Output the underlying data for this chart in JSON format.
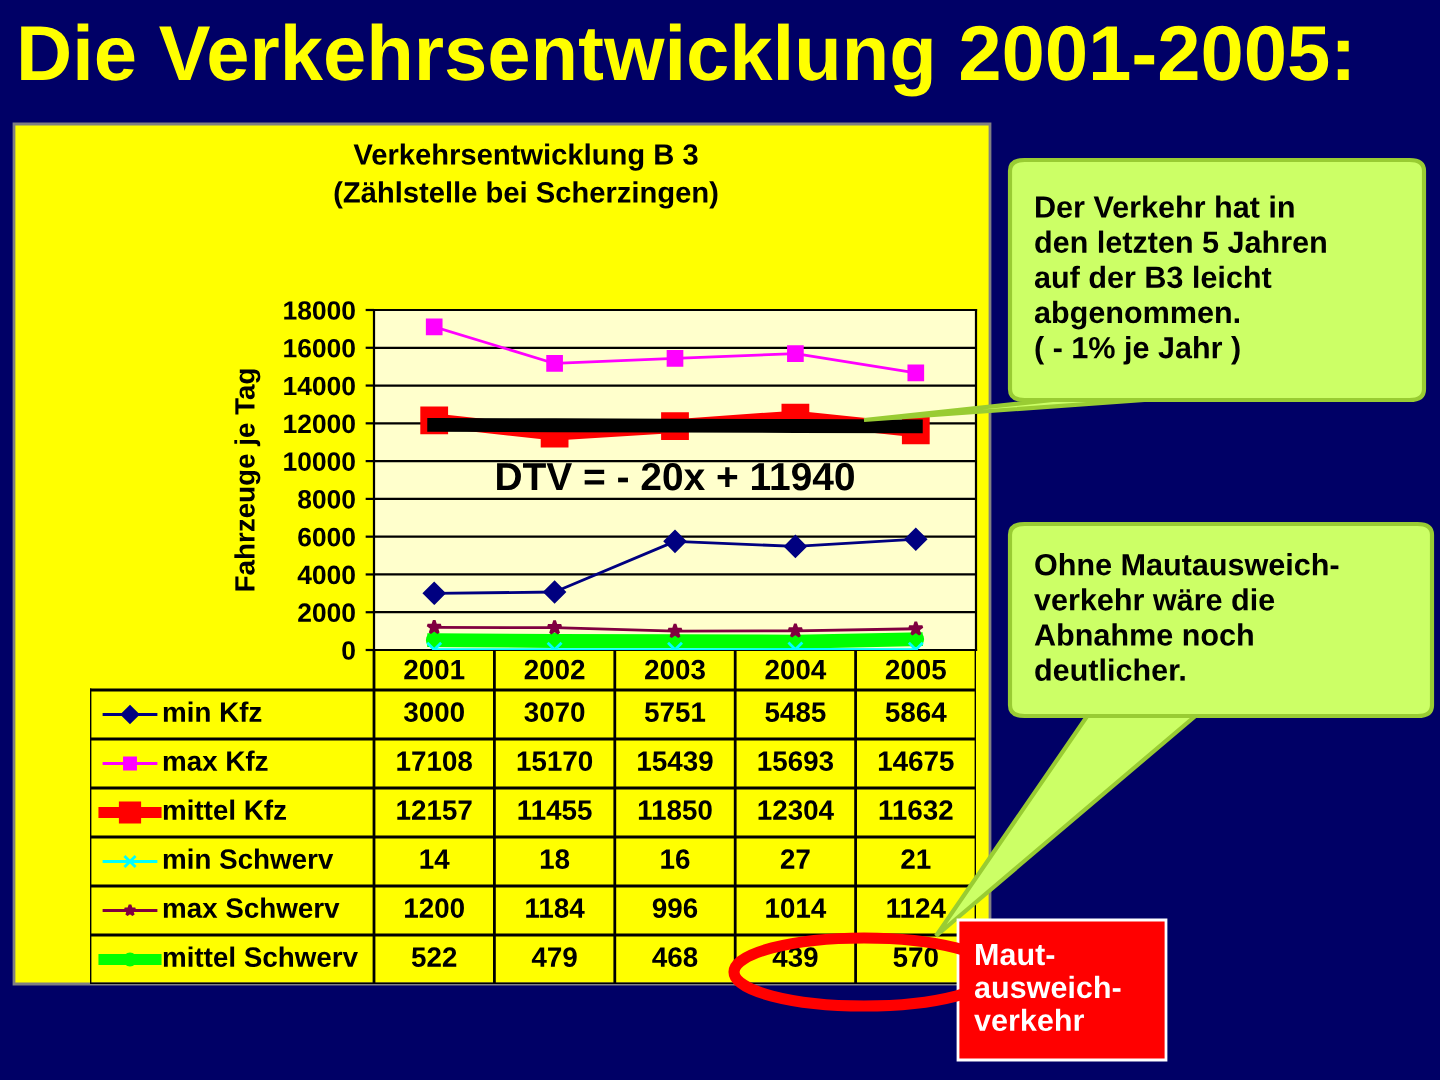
{
  "chart_data": {
    "type": "line",
    "title": "Die Verkehrsentwicklung 2001-2005:",
    "subtitle": "Verkehrsentwicklung B 3\n(Zählstelle bei Scherzingen)",
    "ylabel": "Fahrzeuge je Tag",
    "categories": [
      "2001",
      "2002",
      "2003",
      "2004",
      "2005"
    ],
    "series": [
      {
        "name": "min Kfz",
        "color": "#000080",
        "marker": "diamond",
        "values": [
          3000,
          3070,
          5751,
          5485,
          5864
        ]
      },
      {
        "name": "max Kfz",
        "color": "#ff00ff",
        "marker": "square",
        "values": [
          17108,
          15170,
          15439,
          15693,
          14675
        ]
      },
      {
        "name": "mittel Kfz",
        "color": "#ff0000",
        "marker": "square",
        "values": [
          12157,
          11455,
          11850,
          12304,
          11632
        ]
      },
      {
        "name": "min Schwerv",
        "color": "#00ffff",
        "marker": "cross",
        "values": [
          14,
          18,
          16,
          27,
          21
        ]
      },
      {
        "name": "max Schwerv",
        "color": "#800040",
        "marker": "star",
        "values": [
          1200,
          1184,
          996,
          1014,
          1124
        ]
      },
      {
        "name": "mittel Schwerv",
        "color": "#00ff00",
        "marker": "circle",
        "values": [
          522,
          479,
          468,
          439,
          570
        ]
      },
      {
        "type": "line",
        "color": "#000000",
        "marker": "none",
        "value_labels": [
          null,
          null,
          null,
          null,
          null
        ],
        "values": [
          11920,
          11900,
          11880,
          11860,
          11840
        ]
      }
    ],
    "ylim": [
      0,
      18000
    ],
    "yticks": [
      0,
      2000,
      4000,
      6000,
      8000,
      10000,
      12000,
      14000,
      16000,
      18000
    ],
    "grid": "y",
    "legend": "bottom",
    "data_labels": true,
    "annotations": [
      "DTV = - 20x + 11940",
      "Der Verkehr hat in\nden letzten 5 Jahren\nauf der B3 leicht\nabgenommen.\n( - 1% je Jahr )",
      "Ohne Mautausweich-\nverkehr wäre die\nAbnahme noch\ndeutlicher.",
      "Maut-\nausweich-\nverkehr"
    ]
  }
}
